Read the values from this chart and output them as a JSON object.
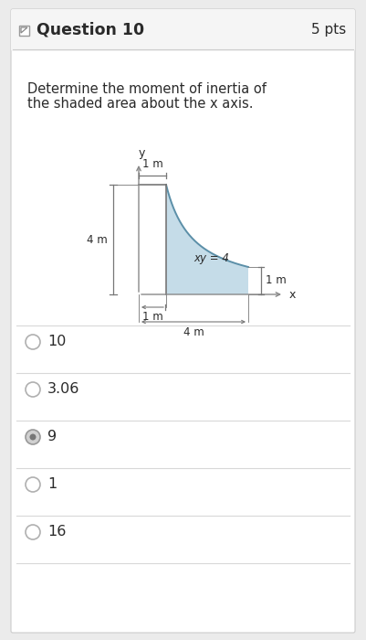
{
  "bg_color": "#ebebeb",
  "card_bg": "#ffffff",
  "header_bg": "#f5f5f5",
  "title_text": "Question 10",
  "pts_text": "5 pts",
  "question_text_line1": "Determine the moment of inertia of",
  "question_text_line2": "the shaded area about the x axis.",
  "curve_label": "xy = 4",
  "dim_4m_left": "4 m",
  "dim_4m_bottom": "4 m",
  "dim_1m_top": "1 m",
  "dim_1m_right": "1 m",
  "shade_color": "#c5dce8",
  "options": [
    "10",
    "3.06",
    "9",
    "1",
    "16"
  ],
  "selected_index": 2,
  "line_color": "#777777",
  "axis_color": "#888888",
  "text_color": "#2a2a2a",
  "separator_color": "#d8d8d8",
  "card_border": "#cccccc",
  "option_circle_color": "#aaaaaa",
  "selected_fill": "#c8c8c8"
}
